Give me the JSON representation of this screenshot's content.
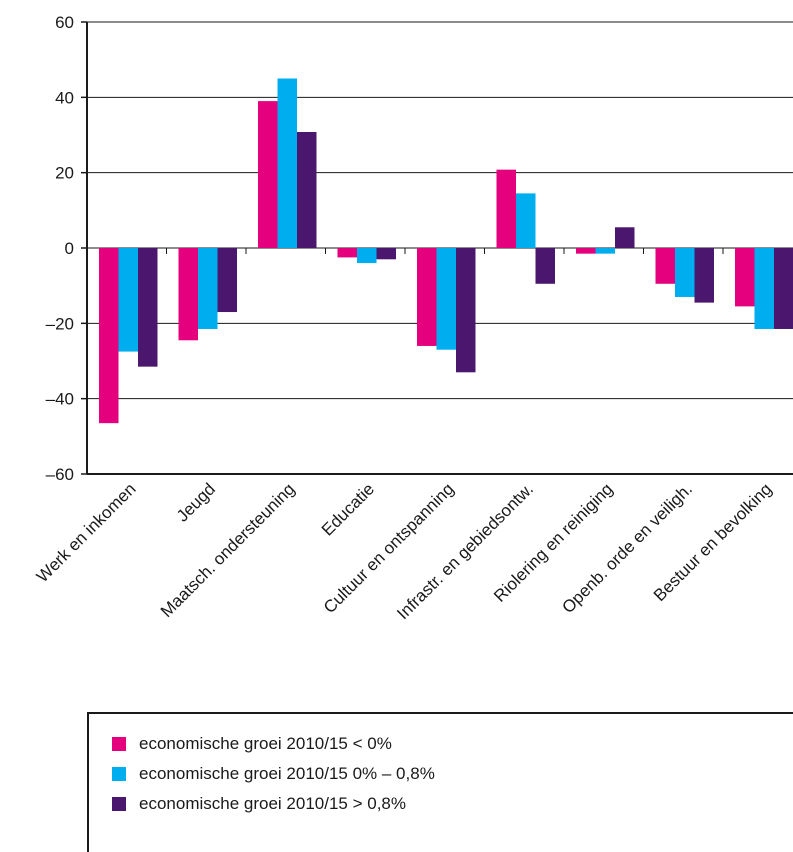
{
  "chart_data": {
    "type": "bar",
    "categories": [
      "Werk en inkomen",
      "Jeugd",
      "Maatsch. ondersteuning",
      "Educatie",
      "Cultuur en ontspanning",
      "Infrastr. en gebiedsontw.",
      "Riolering en reiniging",
      "Openb. orde en veiligh.",
      "Bestuur en bevolking"
    ],
    "series": [
      {
        "name": "economische groei 2010/15 < 0%",
        "color": "#e5007e",
        "values": [
          -46.5,
          -24.5,
          39,
          -2.5,
          -26,
          20.8,
          -1.5,
          -9.5,
          -15.5
        ]
      },
      {
        "name": "economische groei 2010/15 0% – 0,8%",
        "color": "#00aeef",
        "values": [
          -27.5,
          -21.5,
          45,
          -4,
          -27,
          14.5,
          -1.5,
          -13,
          -21.5
        ]
      },
      {
        "name": "economische groei 2010/15 > 0,8%",
        "color": "#4b176e",
        "values": [
          -31.5,
          -17,
          30.8,
          -3,
          -33,
          -9.5,
          5.5,
          -14.5,
          -21.5
        ]
      }
    ],
    "ylim": [
      -60,
      60
    ],
    "yticks": [
      "60",
      "40",
      "20",
      "0",
      "–20",
      "–40",
      "–60"
    ],
    "ytick_values": [
      60,
      40,
      20,
      0,
      -20,
      -40,
      -60
    ],
    "grid": true,
    "legend_position": "bottom",
    "title": "",
    "xlabel": "",
    "ylabel": ""
  }
}
